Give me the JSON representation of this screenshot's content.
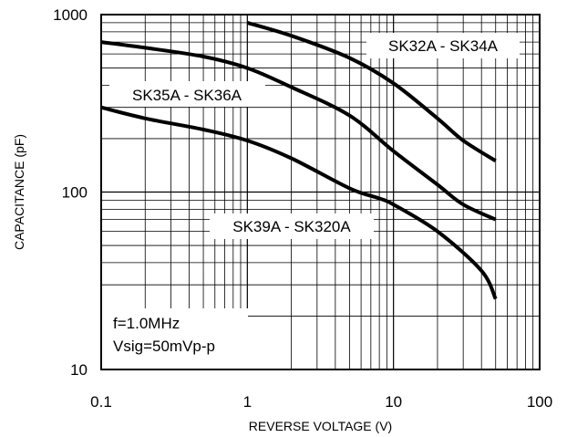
{
  "chart_data": {
    "type": "line",
    "x_scale": "log",
    "y_scale": "log",
    "xlim": [
      0.1,
      100
    ],
    "ylim": [
      10,
      1000
    ],
    "x_ticks": [
      {
        "value": 0.1,
        "label": "0.1"
      },
      {
        "value": 1,
        "label": "1"
      },
      {
        "value": 10,
        "label": "10"
      },
      {
        "value": 100,
        "label": "100"
      }
    ],
    "y_ticks": [
      {
        "value": 10,
        "label": "10"
      },
      {
        "value": 100,
        "label": "100"
      },
      {
        "value": 1000,
        "label": "1000"
      }
    ],
    "xlabel": "REVERSE VOLTAGE (V)",
    "ylabel": "CAPACITANCE (pF)",
    "grid": true,
    "conditions": [
      "f=1.0MHz",
      "Vsig=50mVp-p"
    ],
    "series": [
      {
        "name": "SK32A - SK34A",
        "points": [
          [
            1,
            900
          ],
          [
            2,
            760
          ],
          [
            5,
            570
          ],
          [
            10,
            410
          ],
          [
            20,
            260
          ],
          [
            30,
            195
          ],
          [
            50,
            150
          ]
        ]
      },
      {
        "name": "SK35A - SK36A",
        "points": [
          [
            0.1,
            700
          ],
          [
            0.2,
            650
          ],
          [
            0.5,
            580
          ],
          [
            1,
            500
          ],
          [
            2,
            390
          ],
          [
            5,
            270
          ],
          [
            10,
            170
          ],
          [
            20,
            110
          ],
          [
            30,
            85
          ],
          [
            50,
            70
          ]
        ]
      },
      {
        "name": "SK39A - SK320A",
        "points": [
          [
            0.1,
            300
          ],
          [
            0.2,
            260
          ],
          [
            0.5,
            225
          ],
          [
            1,
            195
          ],
          [
            2,
            155
          ],
          [
            5,
            105
          ],
          [
            8,
            92
          ],
          [
            10,
            85
          ],
          [
            20,
            60
          ],
          [
            40,
            36
          ],
          [
            50,
            25
          ]
        ]
      }
    ]
  }
}
